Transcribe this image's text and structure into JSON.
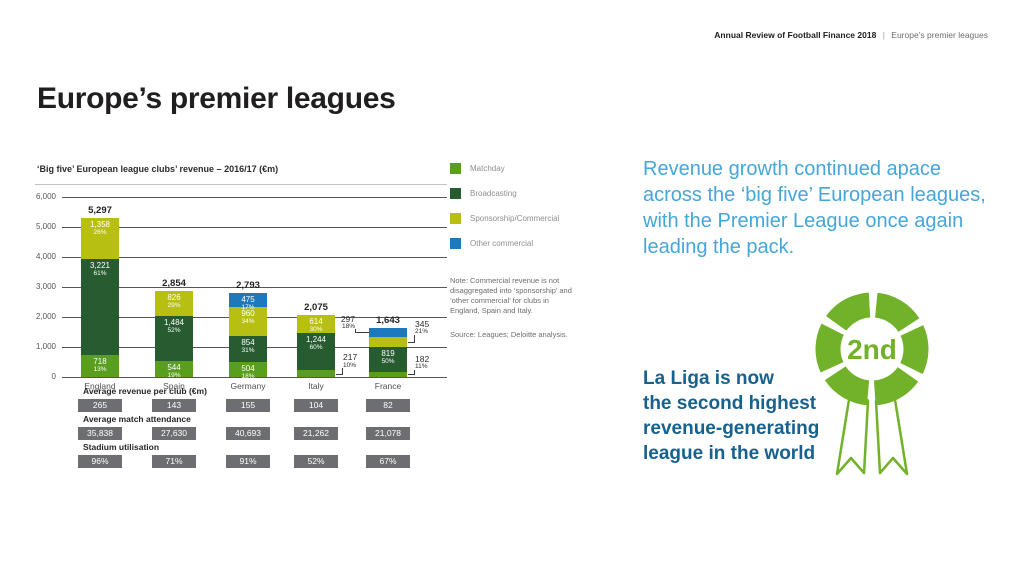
{
  "header": {
    "bold": "Annual Review of Football Finance 2018",
    "separator": "|",
    "section": "Europe’s premier leagues"
  },
  "page_title": "Europe’s premier leagues",
  "colors": {
    "matchday": "#5a9e1e",
    "broadcasting": "#265c30",
    "sponsorship": "#b7bf10",
    "other": "#1d79bb",
    "rosette_green": "#72b22a",
    "pill_gray": "#6d6e71",
    "intro_blue": "#45a6da",
    "callout_blue": "#17618e"
  },
  "chart_data": {
    "type": "bar",
    "stacked": true,
    "title": "‘Big five’ European league clubs’ revenue – 2016/17 (€m)",
    "ylim": [
      0,
      6000
    ],
    "grid": true,
    "y_ticks": [
      "6,000",
      "5,000",
      "4,000",
      "3,000",
      "2,000",
      "1,000",
      "0"
    ],
    "categories": [
      "England",
      "Spain",
      "Germany",
      "Italy",
      "France"
    ],
    "legend": [
      {
        "key": "matchday",
        "label": "Matchday"
      },
      {
        "key": "broadcasting",
        "label": "Broadcasting"
      },
      {
        "key": "sponsorship",
        "label": "Sponsorship/Commercial"
      },
      {
        "key": "other",
        "label": "Other commercial"
      }
    ],
    "series_colors": {
      "matchday": "#5a9e1e",
      "broadcasting": "#265c30",
      "sponsorship": "#b7bf10",
      "other": "#1d79bb"
    },
    "bars": [
      {
        "id": "england",
        "league": "England",
        "total": "5,297",
        "segments": [
          {
            "key": "matchday",
            "value": 718,
            "label": "718",
            "pct": "13%"
          },
          {
            "key": "broadcasting",
            "value": 3221,
            "label": "3,221",
            "pct": "61%"
          },
          {
            "key": "sponsorship",
            "value": 1358,
            "label": "1,358",
            "pct": "26%"
          }
        ]
      },
      {
        "id": "spain",
        "league": "Spain",
        "total": "2,854",
        "segments": [
          {
            "key": "matchday",
            "value": 544,
            "label": "544",
            "pct": "19%"
          },
          {
            "key": "broadcasting",
            "value": 1484,
            "label": "1,484",
            "pct": "52%"
          },
          {
            "key": "sponsorship",
            "value": 826,
            "label": "826",
            "pct": "29%"
          }
        ]
      },
      {
        "id": "germany",
        "league": "Germany",
        "total": "2,793",
        "segments": [
          {
            "key": "matchday",
            "value": 504,
            "label": "504",
            "pct": "18%"
          },
          {
            "key": "broadcasting",
            "value": 854,
            "label": "854",
            "pct": "31%"
          },
          {
            "key": "sponsorship",
            "value": 960,
            "label": "960",
            "pct": "34%"
          },
          {
            "key": "other",
            "value": 475,
            "label": "475",
            "pct": "17%"
          }
        ]
      },
      {
        "id": "italy",
        "league": "Italy",
        "total": "2,075",
        "segments": [
          {
            "key": "matchday",
            "value": 217,
            "label": "217",
            "pct": "10%",
            "callout": "right"
          },
          {
            "key": "broadcasting",
            "value": 1244,
            "label": "1,244",
            "pct": "60%"
          },
          {
            "key": "sponsorship",
            "value": 614,
            "label": "614",
            "pct": "30%"
          }
        ]
      },
      {
        "id": "france",
        "league": "France",
        "total": "1,643",
        "segments": [
          {
            "key": "matchday",
            "value": 182,
            "label": "182",
            "pct": "11%",
            "callout": "right"
          },
          {
            "key": "broadcasting",
            "value": 819,
            "label": "819",
            "pct": "50%"
          },
          {
            "key": "sponsorship",
            "value": 345,
            "label": "345",
            "pct": "21%",
            "callout": "right"
          },
          {
            "key": "other",
            "value": 297,
            "label": "297",
            "pct": "18%",
            "callout": "left"
          }
        ]
      }
    ]
  },
  "stats": [
    {
      "label": "Average revenue per club (€m)",
      "values": [
        "265",
        "143",
        "155",
        "104",
        "82"
      ]
    },
    {
      "label": "Average match attendance",
      "values": [
        "35,838",
        "27,630",
        "40,693",
        "21,262",
        "21,078"
      ]
    },
    {
      "label": "Stadium utilisation",
      "values": [
        "96%",
        "71%",
        "91%",
        "52%",
        "67%"
      ]
    }
  ],
  "note": "Note: Commercial revenue is not disaggregated into ‘sponsorship’ and ‘other commercial’ for clubs in England, Spain and Italy.",
  "source": "Source: Leagues; Deloitte analysis.",
  "right": {
    "intro": "Revenue growth continued apace\nacross the ‘big five’ European leagues,\nwith the Premier League once again\nleading the pack.",
    "badge": "2nd",
    "callout": "La Liga is now\nthe second highest\nrevenue-generating\nleague in the world"
  }
}
